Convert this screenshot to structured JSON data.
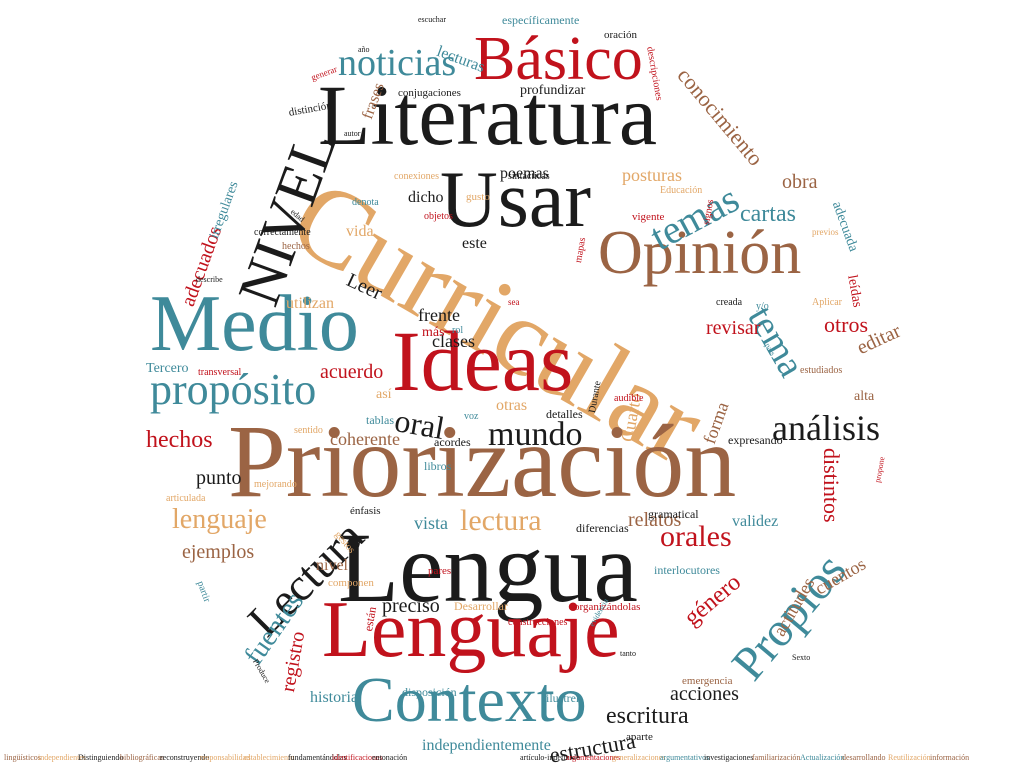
{
  "palette": {
    "red": "#c1121c",
    "teal": "#3f8a9a",
    "orange": "#e2a767",
    "brown": "#9b6444",
    "black": "#1b1b1b"
  },
  "words": [
    {
      "id": "curricular",
      "text": "Curricular",
      "color": "orange"
    },
    {
      "id": "priorizacion",
      "text": "Priorización",
      "color": "brown"
    },
    {
      "id": "lengua",
      "text": "Lengua",
      "color": "black"
    },
    {
      "id": "lenguaje",
      "text": "Lenguaje",
      "color": "red"
    },
    {
      "id": "literatura",
      "text": "Literatura",
      "color": "black"
    },
    {
      "id": "ideas",
      "text": "Ideas",
      "color": "red"
    },
    {
      "id": "medio",
      "text": "Medio",
      "color": "teal"
    },
    {
      "id": "usar",
      "text": "Usar",
      "color": "black"
    },
    {
      "id": "contexto",
      "text": "Contexto",
      "color": "teal"
    },
    {
      "id": "opinion",
      "text": "Opinión",
      "color": "brown"
    },
    {
      "id": "basico",
      "text": "Básico",
      "color": "red"
    },
    {
      "id": "nivel-upper",
      "text": "NIVEL",
      "color": "black"
    },
    {
      "id": "lectura-rot",
      "text": "Lectura",
      "color": "black"
    },
    {
      "id": "propios",
      "text": "Propios",
      "color": "teal"
    },
    {
      "id": "proposito",
      "text": "propósito",
      "color": "teal"
    },
    {
      "id": "noticias",
      "text": "noticias",
      "color": "teal"
    },
    {
      "id": "temas",
      "text": "temas",
      "color": "teal"
    },
    {
      "id": "tema",
      "text": "tema",
      "color": "teal"
    },
    {
      "id": "analisis",
      "text": "análisis",
      "color": "black"
    },
    {
      "id": "mundo",
      "text": "mundo",
      "color": "black"
    },
    {
      "id": "oral",
      "text": "oral",
      "color": "black"
    },
    {
      "id": "lectura",
      "text": "lectura",
      "color": "orange"
    },
    {
      "id": "lenguaje-sm",
      "text": "lenguaje",
      "color": "orange"
    },
    {
      "id": "orales",
      "text": "orales",
      "color": "red"
    },
    {
      "id": "hechos",
      "text": "hechos",
      "color": "red"
    },
    {
      "id": "escritura",
      "text": "escritura",
      "color": "black"
    },
    {
      "id": "fuentes",
      "text": "fuentes",
      "color": "teal"
    },
    {
      "id": "estructura",
      "text": "estructura",
      "color": "black"
    },
    {
      "id": "conocimiento",
      "text": "conocimiento",
      "color": "brown"
    },
    {
      "id": "cartas",
      "text": "cartas",
      "color": "teal"
    },
    {
      "id": "obra",
      "text": "obra",
      "color": "brown"
    },
    {
      "id": "otros",
      "text": "otros",
      "color": "red"
    },
    {
      "id": "editar",
      "text": "editar",
      "color": "brown"
    },
    {
      "id": "revisar",
      "text": "revisar",
      "color": "red"
    },
    {
      "id": "distintos",
      "text": "distintos",
      "color": "red"
    },
    {
      "id": "genero",
      "text": "género",
      "color": "red"
    },
    {
      "id": "acciones",
      "text": "acciones",
      "color": "black"
    },
    {
      "id": "relatos",
      "text": "relatos",
      "color": "brown"
    },
    {
      "id": "ejemplos",
      "text": "ejemplos",
      "color": "brown"
    },
    {
      "id": "punto",
      "text": "punto",
      "color": "black"
    },
    {
      "id": "leer",
      "text": "Leer",
      "color": "black"
    },
    {
      "id": "adecuados",
      "text": "adecuados",
      "color": "red"
    },
    {
      "id": "acuerdo",
      "text": "acuerdo",
      "color": "red"
    },
    {
      "id": "registro",
      "text": "registro",
      "color": "red"
    },
    {
      "id": "preciso",
      "text": "preciso",
      "color": "black"
    },
    {
      "id": "vista",
      "text": "vista",
      "color": "teal"
    },
    {
      "id": "cuentos",
      "text": "cuentos",
      "color": "brown"
    },
    {
      "id": "cuarto",
      "text": "Cuarto",
      "color": "orange"
    },
    {
      "id": "actitudes",
      "text": "actitudes",
      "color": "brown"
    },
    {
      "id": "posturas",
      "text": "posturas",
      "color": "orange"
    },
    {
      "id": "frente",
      "text": "frente",
      "color": "black"
    },
    {
      "id": "clases",
      "text": "clases",
      "color": "black"
    },
    {
      "id": "coherente",
      "text": "coherente",
      "color": "brown"
    },
    {
      "id": "forma",
      "text": "forma",
      "color": "brown"
    },
    {
      "id": "validez",
      "text": "validez",
      "color": "teal"
    },
    {
      "id": "nivel-lower",
      "text": "nivel",
      "color": "brown"
    },
    {
      "id": "vida",
      "text": "vida",
      "color": "orange"
    },
    {
      "id": "este",
      "text": "este",
      "color": "black"
    },
    {
      "id": "dicho",
      "text": "dicho",
      "color": "black"
    },
    {
      "id": "poemas",
      "text": "poemas",
      "color": "black"
    },
    {
      "id": "frases",
      "text": "frases",
      "color": "brown"
    },
    {
      "id": "lecturas",
      "text": "lecturas",
      "color": "teal"
    },
    {
      "id": "historia",
      "text": "historia",
      "color": "teal"
    },
    {
      "id": "utilizan",
      "text": "utilizan",
      "color": "orange"
    },
    {
      "id": "adecuada",
      "text": "adecuada",
      "color": "teal"
    },
    {
      "id": "independientemente",
      "text": "independientemente",
      "color": "teal"
    },
    {
      "id": "tercero",
      "text": "Tercero",
      "color": "teal"
    },
    {
      "id": "otras",
      "text": "otras",
      "color": "orange"
    },
    {
      "id": "mas",
      "text": "más",
      "color": "red"
    },
    {
      "id": "asi",
      "text": "así",
      "color": "orange"
    },
    {
      "id": "irregulares",
      "text": "irregulares",
      "color": "teal"
    },
    {
      "id": "profundizar",
      "text": "profundizar",
      "color": "black"
    },
    {
      "id": "especificamente",
      "text": "específicamente",
      "color": "teal"
    },
    {
      "id": "alta",
      "text": "alta",
      "color": "brown"
    },
    {
      "id": "leidas",
      "text": "leídas",
      "color": "red"
    },
    {
      "id": "tablas",
      "text": "tablas",
      "color": "teal"
    },
    {
      "id": "libros",
      "text": "libros",
      "color": "teal"
    },
    {
      "id": "acordes",
      "text": "acordes",
      "color": "black"
    },
    {
      "id": "detalles",
      "text": "detalles",
      "color": "black"
    },
    {
      "id": "expresando",
      "text": "expresando",
      "color": "black"
    },
    {
      "id": "diferencias",
      "text": "diferencias",
      "color": "black"
    },
    {
      "id": "gramatical",
      "text": "gramatical",
      "color": "black"
    },
    {
      "id": "interlocutores",
      "text": "interlocutores",
      "color": "teal"
    },
    {
      "id": "construcciones",
      "text": "construcciones",
      "color": "red"
    },
    {
      "id": "disposicion",
      "text": "disposición",
      "color": "teal"
    },
    {
      "id": "ilustren",
      "text": "ilustren",
      "color": "teal"
    },
    {
      "id": "aparte",
      "text": "aparte",
      "color": "black"
    },
    {
      "id": "emergencia",
      "text": "emergencia",
      "color": "brown"
    },
    {
      "id": "desarrollar",
      "text": "Desarrollar",
      "color": "orange"
    },
    {
      "id": "organizandolas",
      "text": "organizándolas",
      "color": "red"
    },
    {
      "id": "componen",
      "text": "componen",
      "color": "orange"
    },
    {
      "id": "pares",
      "text": "pares",
      "color": "red"
    },
    {
      "id": "enfasis",
      "text": "énfasis",
      "color": "black"
    },
    {
      "id": "gestos",
      "text": "gestos",
      "color": "orange"
    },
    {
      "id": "mejorando",
      "text": "mejorando",
      "color": "orange"
    },
    {
      "id": "articulada",
      "text": "articulada",
      "color": "orange"
    },
    {
      "id": "sentido",
      "text": "sentido",
      "color": "orange"
    },
    {
      "id": "voz",
      "text": "voz",
      "color": "teal"
    },
    {
      "id": "durante",
      "text": "Durante",
      "color": "black"
    },
    {
      "id": "audible",
      "text": "audible",
      "color": "red"
    },
    {
      "id": "estudiados",
      "text": "estudiados",
      "color": "brown"
    },
    {
      "id": "transversal",
      "text": "transversal",
      "color": "red"
    },
    {
      "id": "rol",
      "text": "rol",
      "color": "teal"
    },
    {
      "id": "sea",
      "text": "sea",
      "color": "red"
    },
    {
      "id": "creada",
      "text": "creada",
      "color": "black"
    },
    {
      "id": "yo",
      "text": "y/o",
      "color": "teal"
    },
    {
      "id": "aplicar",
      "text": "Aplicar",
      "color": "orange"
    },
    {
      "id": "mapas",
      "text": "mapas",
      "color": "red"
    },
    {
      "id": "vigente",
      "text": "vigente",
      "color": "red"
    },
    {
      "id": "educacion",
      "text": "Educación",
      "color": "orange"
    },
    {
      "id": "gusto",
      "text": "gusto",
      "color": "orange"
    },
    {
      "id": "objetos",
      "text": "objetos",
      "color": "red"
    },
    {
      "id": "sintacticas",
      "text": "sintácticas",
      "color": "black"
    },
    {
      "id": "conexiones",
      "text": "conexiones",
      "color": "orange"
    },
    {
      "id": "denota",
      "text": "denota",
      "color": "teal"
    },
    {
      "id": "correctamente",
      "text": "correctamente",
      "color": "black"
    },
    {
      "id": "hechos-sm",
      "text": "hechos",
      "color": "brown"
    },
    {
      "id": "distincion",
      "text": "distinción",
      "color": "black"
    },
    {
      "id": "conjugaciones",
      "text": "conjugaciones",
      "color": "black"
    },
    {
      "id": "oracion",
      "text": "oración",
      "color": "black"
    },
    {
      "id": "autor",
      "text": "autor",
      "color": "black"
    },
    {
      "id": "estan",
      "text": "están",
      "color": "red"
    },
    {
      "id": "partir",
      "text": "partir",
      "color": "teal"
    },
    {
      "id": "signos",
      "text": "signos",
      "color": "red"
    },
    {
      "id": "previos",
      "text": "previos",
      "color": "orange"
    },
    {
      "id": "descripciones",
      "text": "descripciones",
      "color": "red"
    },
    {
      "id": "generar",
      "text": "generar",
      "color": "red"
    },
    {
      "id": "anos",
      "text": "año",
      "color": "black"
    },
    {
      "id": "describe",
      "text": "describe",
      "color": "black"
    },
    {
      "id": "escuchar",
      "text": "escuchar",
      "color": "black"
    },
    {
      "id": "produce",
      "text": "Produce",
      "color": "black"
    },
    {
      "id": "sexto",
      "text": "Sexto",
      "color": "black"
    },
    {
      "id": "recuerda",
      "text": "edad",
      "color": "black"
    },
    {
      "id": "propone",
      "text": "propone",
      "color": "red"
    },
    {
      "id": "tanto",
      "text": "tanto",
      "color": "black"
    },
    {
      "id": "pais",
      "text": "país",
      "color": "teal"
    },
    {
      "id": "evidencia",
      "text": "evidencia",
      "color": "teal"
    },
    {
      "id": "footer-1",
      "text": "lingüísticos",
      "color": "brown"
    },
    {
      "id": "footer-2",
      "text": "independientes",
      "color": "orange"
    },
    {
      "id": "footer-3",
      "text": "Distinguiendo",
      "color": "black"
    },
    {
      "id": "footer-4",
      "text": "bibliográficas",
      "color": "brown"
    },
    {
      "id": "footer-5",
      "text": "reconstruyendo",
      "color": "black"
    },
    {
      "id": "footer-6",
      "text": "responsabilidad",
      "color": "orange"
    },
    {
      "id": "footer-7",
      "text": "establecimiento",
      "color": "orange"
    },
    {
      "id": "footer-8",
      "text": "fundamentándolas",
      "color": "black"
    },
    {
      "id": "footer-9",
      "text": "identificaciones",
      "color": "red"
    },
    {
      "id": "footer-10",
      "text": "entonación",
      "color": "black"
    },
    {
      "id": "footer-11",
      "text": "artículo-indefinido",
      "color": "black"
    },
    {
      "id": "footer-12",
      "text": "argumentaciones",
      "color": "red"
    },
    {
      "id": "footer-13",
      "text": "generalizaciones",
      "color": "orange"
    },
    {
      "id": "footer-14",
      "text": "argumentativos",
      "color": "teal"
    },
    {
      "id": "footer-15",
      "text": "investigaciones",
      "color": "black"
    },
    {
      "id": "footer-16",
      "text": "familiarización",
      "color": "brown"
    },
    {
      "id": "footer-17",
      "text": "Actualización",
      "color": "teal"
    },
    {
      "id": "footer-18",
      "text": "desarrollando",
      "color": "brown"
    },
    {
      "id": "footer-19",
      "text": "Reutilización",
      "color": "orange"
    },
    {
      "id": "footer-20",
      "text": "información",
      "color": "brown"
    }
  ]
}
